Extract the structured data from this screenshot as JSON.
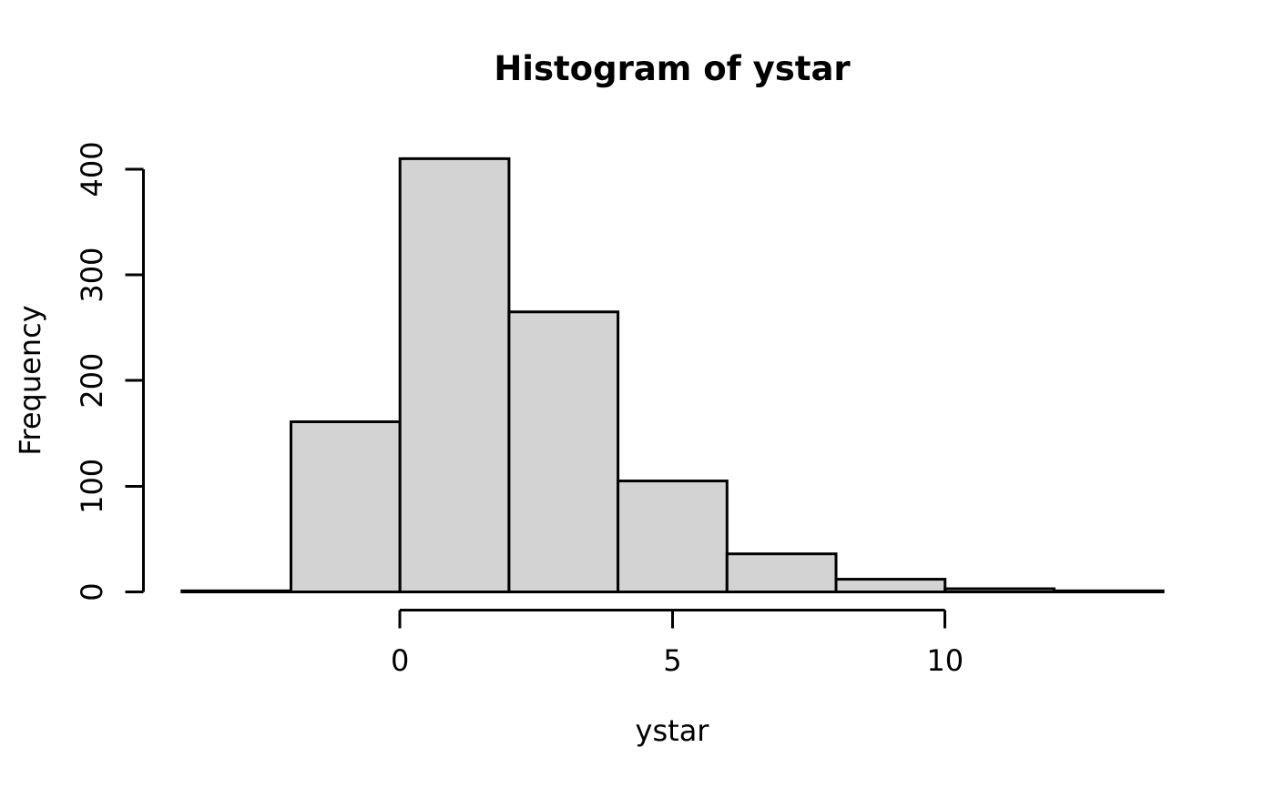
{
  "figure": {
    "title": "Histogram of ystar",
    "xlabel": "ystar",
    "ylabel": "Frequency"
  },
  "chart_data": {
    "type": "bar",
    "subtype": "histogram",
    "title": "Histogram of ystar",
    "xlabel": "ystar",
    "ylabel": "Frequency",
    "bin_edges": [
      -4,
      -2,
      0,
      2,
      4,
      6,
      8,
      10,
      12,
      14
    ],
    "counts": [
      1,
      161,
      410,
      265,
      105,
      36,
      12,
      3,
      1
    ],
    "xticks": [
      0,
      5,
      10
    ],
    "xtick_labels": [
      "0",
      "5",
      "10"
    ],
    "yticks": [
      0,
      100,
      200,
      300,
      400
    ],
    "ytick_labels": [
      "0",
      "100",
      "200",
      "300",
      "400"
    ],
    "xlim": [
      -4,
      14
    ],
    "ylim": [
      0,
      400
    ],
    "grid": false,
    "legend": null,
    "bar_fill": "#d3d3d3",
    "bar_stroke": "#000000",
    "axis_color": "#000000",
    "text_color": "#000000",
    "background": "#ffffff"
  }
}
